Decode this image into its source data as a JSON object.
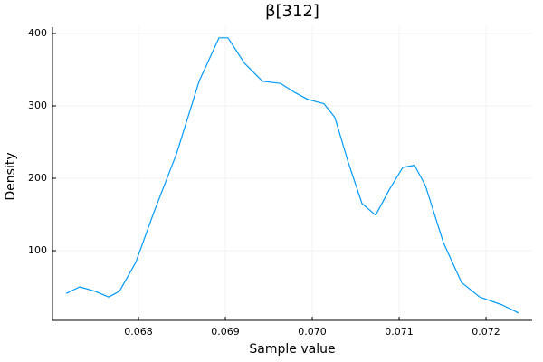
{
  "chart_data": {
    "type": "line",
    "title": "β[312]",
    "x_label": "Sample value",
    "y_label": "Density",
    "x": [
      0.067167,
      0.067323,
      0.0675,
      0.067656,
      0.067781,
      0.067969,
      0.068177,
      0.068438,
      0.068698,
      0.068927,
      0.06903,
      0.069219,
      0.069427,
      0.069635,
      0.069792,
      0.069948,
      0.070135,
      0.07026,
      0.070417,
      0.070573,
      0.07073,
      0.070885,
      0.071042,
      0.071177,
      0.071302,
      0.07151,
      0.071719,
      0.071927,
      0.072188,
      0.072375
    ],
    "series": [
      {
        "color": "#009af9",
        "values": [
          41,
          50,
          44,
          36,
          44,
          84,
          153,
          234,
          334,
          394,
          394,
          359,
          334,
          331,
          319,
          309,
          303,
          284,
          221,
          165,
          149,
          184,
          215,
          218,
          190,
          111,
          56,
          36,
          25,
          14
        ]
      }
    ],
    "xlim": [
      0.06701,
      0.072531
    ],
    "ylim": [
      3.75,
      408.75
    ],
    "xticks": [
      0.068,
      0.069,
      {
        "value": 0.07,
        "label": "0.070"
      },
      0.071,
      0.072
    ],
    "yticks": [
      100,
      200,
      300,
      400
    ],
    "grid": true
  }
}
